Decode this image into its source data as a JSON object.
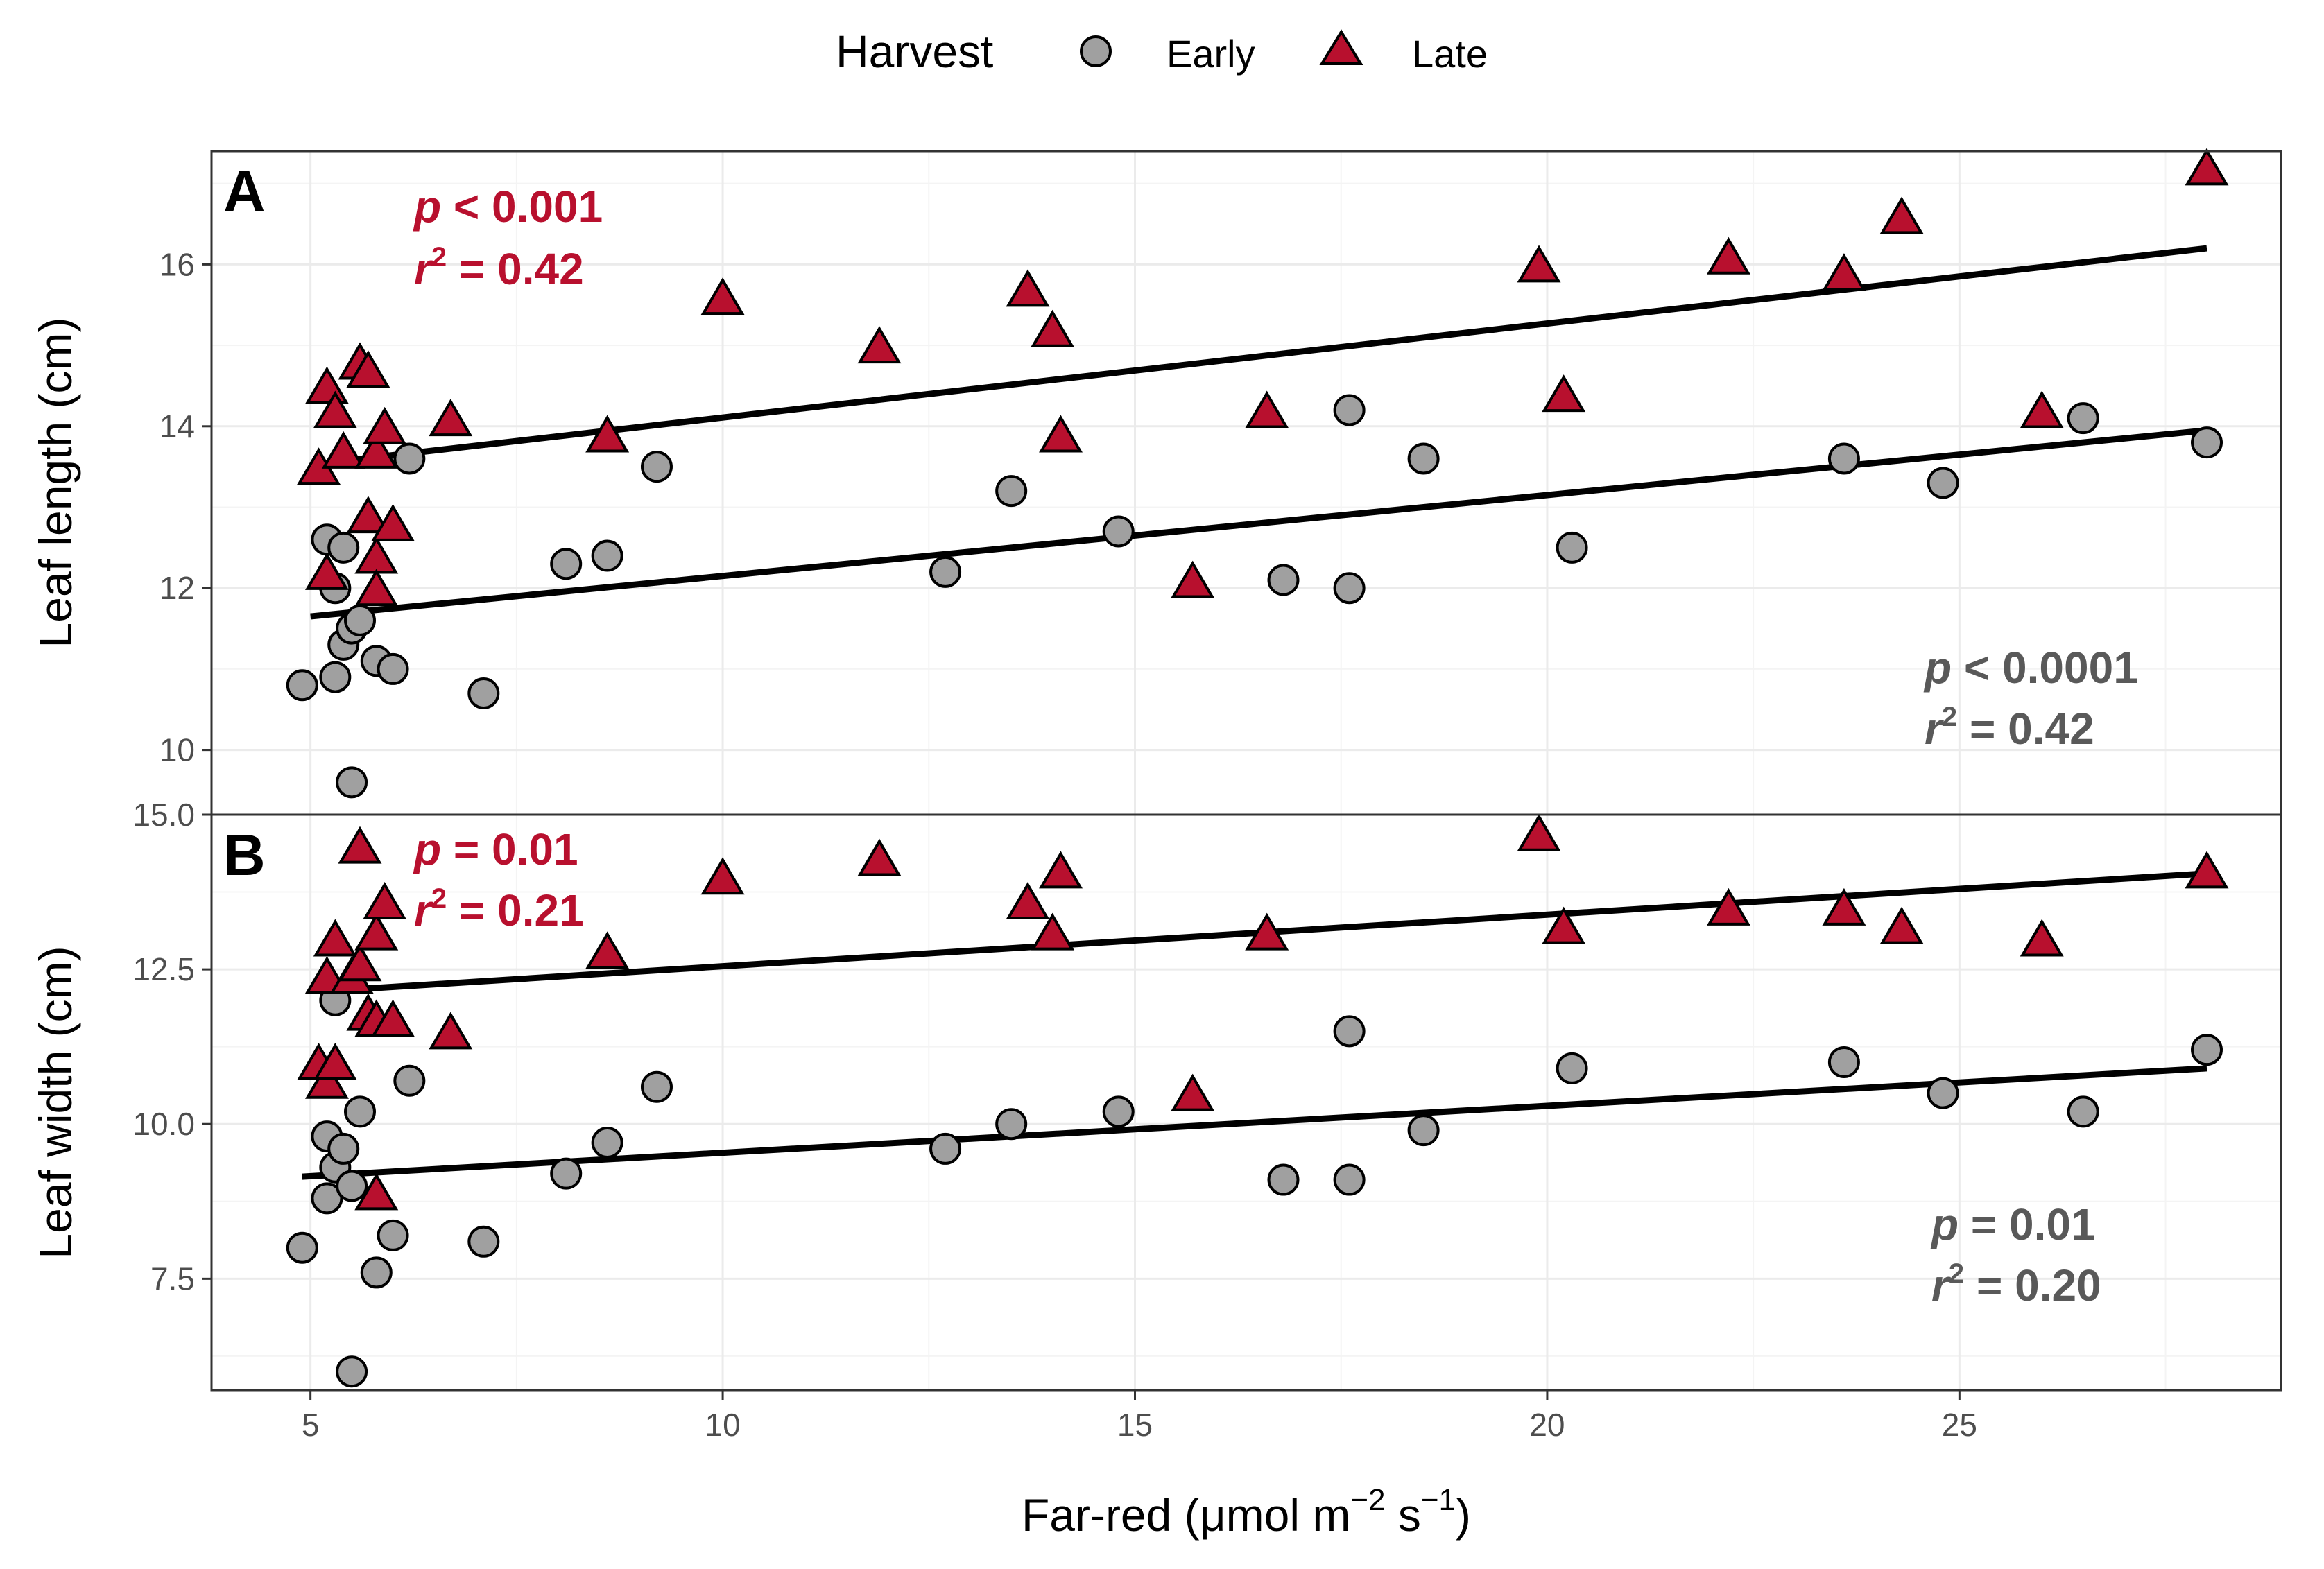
{
  "chart_data": {
    "type": "scatter",
    "shared_x_axis": {
      "label_main": "Far-red (μmol m",
      "label_sup1": "−2",
      "label_mid": " s",
      "label_sup2": "−1",
      "label_end": ")",
      "xlim": [
        3.8,
        28.9
      ],
      "ticks": [
        5,
        10,
        15,
        20,
        25
      ],
      "tick_labels": [
        "5",
        "10",
        "15",
        "20",
        "25"
      ]
    },
    "legend": {
      "title": "Harvest",
      "placement": "top",
      "entries": [
        {
          "label": "Early",
          "marker": "circle",
          "color": "#a0a0a0"
        },
        {
          "label": "Late",
          "marker": "triangle",
          "color": "#b8102e"
        }
      ]
    },
    "colors": {
      "early": "#a0a0a0",
      "late": "#b8102e",
      "late_stat": "#b8102e",
      "early_stat": "#595959",
      "line": "#000000"
    },
    "panels": [
      {
        "id": "A",
        "letter": "A",
        "ylabel": "Leaf length (cm)",
        "ylim": [
          9.2,
          17.4
        ],
        "yticks": [
          10,
          12,
          14,
          16
        ],
        "ytick_labels": [
          "10",
          "12",
          "14",
          "16"
        ],
        "stats": {
          "late": {
            "p": "p",
            "p_op": " < 0.001",
            "r": "r",
            "r_sup": "2",
            "r_val": " = 0.42"
          },
          "early": {
            "p": "p",
            "p_op": " < 0.0001",
            "r": "r",
            "r_sup": "2",
            "r_val": " = 0.42"
          }
        },
        "series": [
          {
            "name": "Early",
            "fit": {
              "x": [
                5.0,
                28.0
              ],
              "y": [
                11.65,
                13.95
              ]
            },
            "points": [
              [
                4.9,
                10.8
              ],
              [
                5.2,
                12.6
              ],
              [
                5.3,
                12.0
              ],
              [
                5.4,
                12.5
              ],
              [
                5.3,
                10.9
              ],
              [
                5.4,
                11.3
              ],
              [
                5.5,
                11.5
              ],
              [
                5.6,
                11.6
              ],
              [
                5.8,
                11.1
              ],
              [
                6.0,
                11.0
              ],
              [
                5.5,
                9.6
              ],
              [
                6.2,
                13.6
              ],
              [
                7.1,
                10.7
              ],
              [
                8.1,
                12.3
              ],
              [
                8.6,
                12.4
              ],
              [
                9.2,
                13.5
              ],
              [
                12.7,
                12.2
              ],
              [
                13.5,
                13.2
              ],
              [
                14.8,
                12.7
              ],
              [
                16.8,
                12.1
              ],
              [
                17.6,
                14.2
              ],
              [
                17.6,
                12.0
              ],
              [
                18.5,
                13.6
              ],
              [
                20.3,
                12.5
              ],
              [
                23.6,
                13.6
              ],
              [
                24.8,
                13.3
              ],
              [
                26.5,
                14.1
              ],
              [
                28.0,
                13.8
              ]
            ]
          },
          {
            "name": "Late",
            "fit": {
              "x": [
                5.2,
                28.0
              ],
              "y": [
                13.55,
                16.2
              ]
            },
            "points": [
              [
                5.1,
                13.5
              ],
              [
                5.2,
                14.5
              ],
              [
                5.2,
                12.2
              ],
              [
                5.3,
                14.2
              ],
              [
                5.4,
                13.7
              ],
              [
                5.6,
                14.8
              ],
              [
                5.7,
                14.7
              ],
              [
                5.8,
                13.7
              ],
              [
                5.9,
                14.0
              ],
              [
                5.7,
                12.9
              ],
              [
                5.8,
                12.4
              ],
              [
                5.8,
                12.0
              ],
              [
                6.0,
                12.8
              ],
              [
                6.7,
                14.1
              ],
              [
                8.6,
                13.9
              ],
              [
                10.0,
                15.6
              ],
              [
                11.9,
                15.0
              ],
              [
                13.7,
                15.7
              ],
              [
                14.0,
                15.2
              ],
              [
                14.1,
                13.9
              ],
              [
                15.7,
                12.1
              ],
              [
                16.6,
                14.2
              ],
              [
                19.9,
                16.0
              ],
              [
                20.2,
                14.4
              ],
              [
                22.2,
                16.1
              ],
              [
                23.6,
                15.9
              ],
              [
                24.3,
                16.6
              ],
              [
                26.0,
                14.2
              ],
              [
                28.0,
                17.2
              ]
            ]
          }
        ]
      },
      {
        "id": "B",
        "letter": "B",
        "ylabel": "Leaf width (cm)",
        "ylim": [
          5.7,
          15.0
        ],
        "yticks": [
          7.5,
          10.0,
          12.5,
          15.0
        ],
        "ytick_labels": [
          "7.5",
          "10.0",
          "12.5",
          "15.0"
        ],
        "stats": {
          "late": {
            "p": "p",
            "p_op": " = 0.01",
            "r": "r",
            "r_sup": "2",
            "r_val": " = 0.21"
          },
          "early": {
            "p": "p",
            "p_op": " = 0.01",
            "r": "r",
            "r_sup": "2",
            "r_val": " =  0.20"
          }
        },
        "series": [
          {
            "name": "Early",
            "fit": {
              "x": [
                4.9,
                28.0
              ],
              "y": [
                9.15,
                10.9
              ]
            },
            "points": [
              [
                4.9,
                8.0
              ],
              [
                5.2,
                9.8
              ],
              [
                5.2,
                8.8
              ],
              [
                5.3,
                9.3
              ],
              [
                5.3,
                12.0
              ],
              [
                5.4,
                9.6
              ],
              [
                5.5,
                9.0
              ],
              [
                5.6,
                10.2
              ],
              [
                5.8,
                7.6
              ],
              [
                6.0,
                8.2
              ],
              [
                5.5,
                6.0
              ],
              [
                6.2,
                10.7
              ],
              [
                7.1,
                8.1
              ],
              [
                8.1,
                9.2
              ],
              [
                8.6,
                9.7
              ],
              [
                9.2,
                10.6
              ],
              [
                12.7,
                9.6
              ],
              [
                13.5,
                10.0
              ],
              [
                14.8,
                10.2
              ],
              [
                16.8,
                9.1
              ],
              [
                17.6,
                11.5
              ],
              [
                17.6,
                9.1
              ],
              [
                18.5,
                9.9
              ],
              [
                20.3,
                10.9
              ],
              [
                23.6,
                11.0
              ],
              [
                24.8,
                10.5
              ],
              [
                26.5,
                10.2
              ],
              [
                28.0,
                11.2
              ]
            ]
          },
          {
            "name": "Late",
            "fit": {
              "x": [
                5.2,
                28.0
              ],
              "y": [
                12.15,
                14.05
              ]
            },
            "points": [
              [
                5.1,
                11.0
              ],
              [
                5.2,
                12.4
              ],
              [
                5.2,
                10.7
              ],
              [
                5.3,
                13.0
              ],
              [
                5.3,
                11.0
              ],
              [
                5.5,
                12.4
              ],
              [
                5.6,
                12.6
              ],
              [
                5.6,
                14.5
              ],
              [
                5.7,
                11.8
              ],
              [
                5.8,
                13.1
              ],
              [
                5.8,
                11.7
              ],
              [
                5.9,
                13.6
              ],
              [
                6.0,
                11.7
              ],
              [
                5.8,
                8.9
              ],
              [
                6.7,
                11.5
              ],
              [
                8.6,
                12.8
              ],
              [
                10.0,
                14.0
              ],
              [
                11.9,
                14.3
              ],
              [
                13.7,
                13.6
              ],
              [
                14.0,
                13.1
              ],
              [
                14.1,
                14.1
              ],
              [
                15.7,
                10.5
              ],
              [
                16.6,
                13.1
              ],
              [
                19.9,
                14.7
              ],
              [
                20.2,
                13.2
              ],
              [
                22.2,
                13.5
              ],
              [
                23.6,
                13.5
              ],
              [
                24.3,
                13.2
              ],
              [
                26.0,
                13.0
              ],
              [
                28.0,
                14.1
              ]
            ]
          }
        ]
      }
    ]
  }
}
